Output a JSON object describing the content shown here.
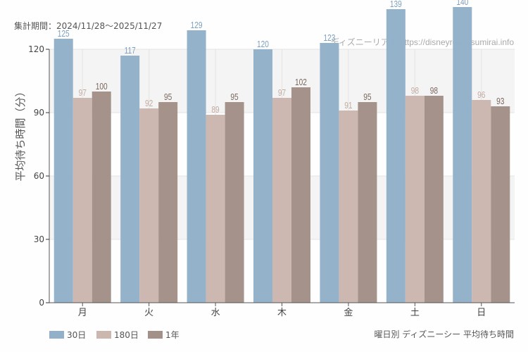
{
  "header": {
    "period_label": "集計期間：2024/11/28〜2025/11/27"
  },
  "watermark": "ディズニーリアル https://disneyreal.asumirai.info",
  "footer": {
    "caption": "曜日別 ディズニーシー 平均待ち時間"
  },
  "legend": [
    {
      "label": "30日",
      "color": "#93b0ca"
    },
    {
      "label": "180日",
      "color": "#cbb7ae"
    },
    {
      "label": "1年",
      "color": "#a39189"
    }
  ],
  "colors": {
    "band": "#f3f4f3",
    "grid": "#e3e4e3",
    "axis": "#555555",
    "label_30": "#7f9fbe",
    "label_180": "#c4aba1",
    "label_1y": "#7a665e"
  },
  "chart_data": {
    "type": "bar",
    "title": "曜日別 ディズニーシー 平均待ち時間",
    "subtitle": "集計期間：2024/11/28〜2025/11/27",
    "xlabel": "",
    "ylabel": "平均待ち時間（分）",
    "ylim": [
      0,
      140
    ],
    "yticks": [
      0,
      30,
      60,
      90,
      120
    ],
    "grid": true,
    "legend_position": "bottom-left",
    "categories": [
      "月",
      "火",
      "水",
      "木",
      "金",
      "土",
      "日"
    ],
    "series": [
      {
        "name": "30日",
        "values": [
          125,
          117,
          129,
          120,
          123,
          139,
          140
        ]
      },
      {
        "name": "180日",
        "values": [
          97,
          92,
          89,
          97,
          91,
          98,
          96
        ]
      },
      {
        "name": "1年",
        "values": [
          100,
          95,
          95,
          102,
          95,
          98,
          93
        ]
      }
    ]
  }
}
